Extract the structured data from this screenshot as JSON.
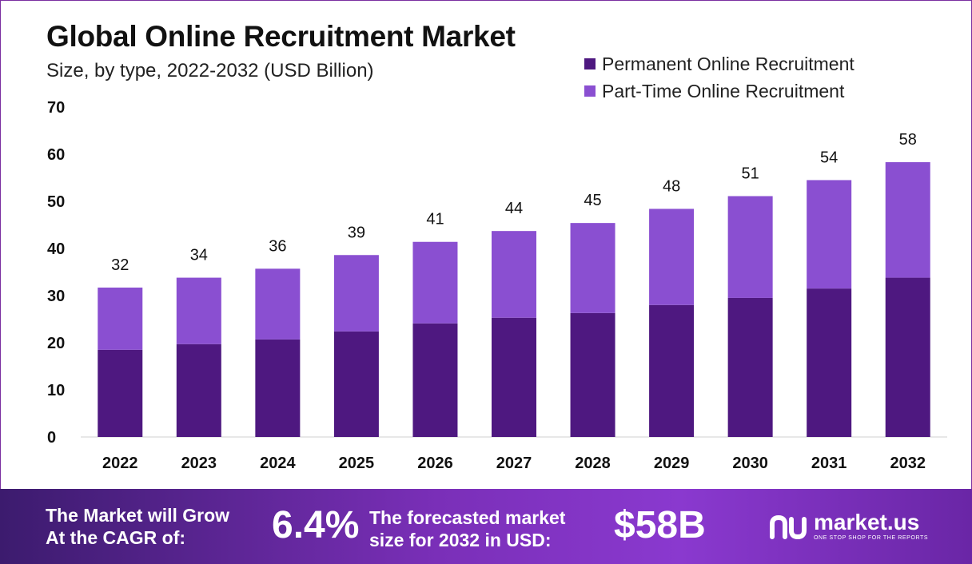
{
  "header": {
    "title": "Global Online Recruitment Market",
    "subtitle": "Size, by type, 2022-2032 (USD Billion)"
  },
  "legend": [
    {
      "label": "Permanent Online Recruitment",
      "color": "#4e1880"
    },
    {
      "label": "Part-Time Online Recruitment",
      "color": "#8a4fd1"
    }
  ],
  "chart_data": {
    "type": "bar",
    "stacked": true,
    "title": "Global Online Recruitment Market",
    "subtitle": "Size, by type, 2022-2032 (USD Billion)",
    "categories": [
      "2022",
      "2023",
      "2024",
      "2025",
      "2026",
      "2027",
      "2028",
      "2029",
      "2030",
      "2031",
      "2032"
    ],
    "series": [
      {
        "name": "Permanent Online Recruitment",
        "color": "#4e1880",
        "values": [
          18.5,
          19.7,
          20.7,
          22.4,
          24.1,
          25.3,
          26.3,
          28.0,
          29.5,
          31.5,
          33.8
        ]
      },
      {
        "name": "Part-Time Online Recruitment",
        "color": "#8a4fd1",
        "values": [
          13.2,
          14.1,
          15.0,
          16.2,
          17.3,
          18.4,
          19.1,
          20.4,
          21.6,
          23.0,
          24.5
        ]
      }
    ],
    "totals": [
      "32",
      "34",
      "36",
      "39",
      "41",
      "44",
      "45",
      "48",
      "51",
      "54",
      "58"
    ],
    "yticks": [
      "0",
      "10",
      "20",
      "30",
      "40",
      "50",
      "60",
      "70"
    ],
    "ylim": [
      0,
      70
    ],
    "xlabel": "",
    "ylabel": "",
    "grid": false,
    "legend_position": "top-right"
  },
  "footer": {
    "cagr_line1": "The Market will Grow",
    "cagr_line2": "At the CAGR of:",
    "cagr_value": "6.4%",
    "forecast_line1": "The forecasted market",
    "forecast_line2": "size for 2032 in USD:",
    "forecast_value": "$58B",
    "brand_name": "market.us",
    "brand_tagline": "ONE STOP SHOP FOR THE REPORTS"
  }
}
